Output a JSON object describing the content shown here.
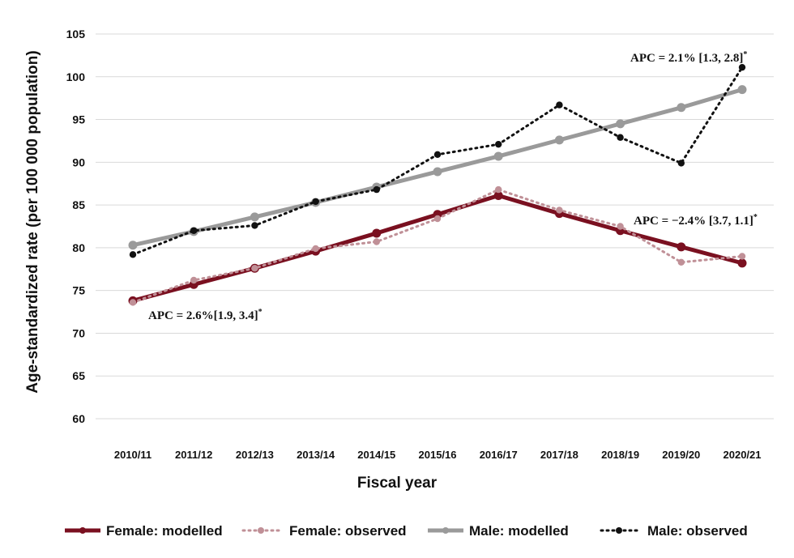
{
  "chart_data": {
    "type": "line",
    "title": "",
    "xlabel": "Fiscal year",
    "ylabel": "Age-standardized rate (per 100 000 population)",
    "categories": [
      "2010/11",
      "2011/12",
      "2012/13",
      "2013/14",
      "2014/15",
      "2015/16",
      "2016/17",
      "2017/18",
      "2018/19",
      "2019/20",
      "2020/21"
    ],
    "ylim": [
      60,
      105
    ],
    "yticks": [
      60,
      65,
      70,
      75,
      80,
      85,
      90,
      95,
      100,
      105
    ],
    "grid": true,
    "legend_position": "bottom",
    "series": [
      {
        "name": "Female: modelled",
        "style": "solid-thick",
        "color": "#7a1020",
        "values": [
          73.8,
          75.7,
          77.6,
          79.6,
          81.7,
          83.9,
          86.1,
          84.0,
          82.0,
          80.1,
          78.2
        ]
      },
      {
        "name": "Female: observed",
        "style": "dotted",
        "color": "#c09097",
        "values": [
          73.6,
          76.2,
          77.6,
          79.9,
          80.7,
          83.4,
          86.8,
          84.4,
          82.5,
          78.3,
          79.0
        ]
      },
      {
        "name": "Male: modelled",
        "style": "solid-thick",
        "color": "#9a9a9a",
        "values": [
          80.3,
          81.9,
          83.6,
          85.3,
          87.1,
          88.9,
          90.7,
          92.6,
          94.5,
          96.4,
          98.5
        ]
      },
      {
        "name": "Male: observed",
        "style": "dotted",
        "color": "#111111",
        "values": [
          79.2,
          82.0,
          82.6,
          85.4,
          86.8,
          90.9,
          92.1,
          96.7,
          92.9,
          89.9,
          101.1
        ]
      }
    ],
    "annotations": [
      {
        "text": "APC = 2.1% [1.3, 2.8]",
        "superscript": "*"
      },
      {
        "text": "APC = −2.4% [3.7, 1.1]",
        "superscript": "*"
      },
      {
        "text": "APC = 2.6%[1.9, 3.4]",
        "superscript": "*"
      }
    ]
  }
}
